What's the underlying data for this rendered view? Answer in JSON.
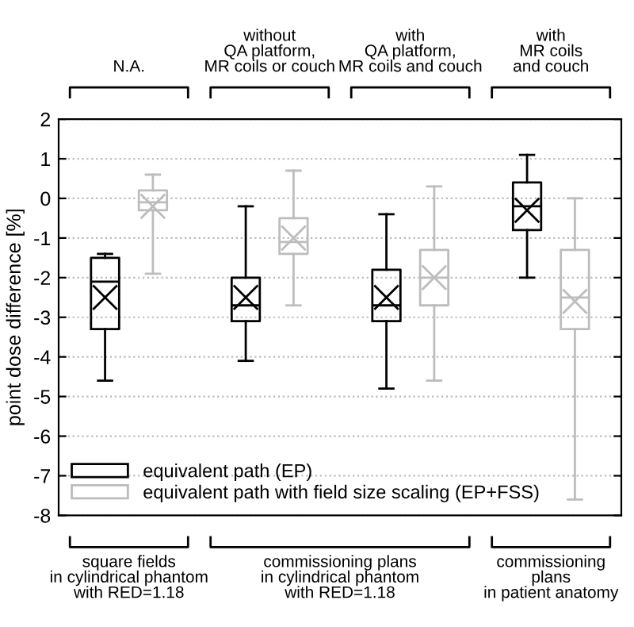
{
  "chart_data": {
    "type": "box",
    "categories": [
      "N.A.",
      "without\nQA platform,\nMR coils or couch",
      "with\nQA platform,\nMR coils and couch",
      "with\nMR coils\nand couch"
    ],
    "ylabel": "point dose difference [%]",
    "ylim": [
      -8,
      2
    ],
    "yticks": [
      -8,
      -7,
      -6,
      -5,
      -4,
      -3,
      -2,
      -1,
      0,
      1,
      2
    ],
    "grid": "y",
    "legend": "bottom left",
    "marker": "cross",
    "series": [
      {
        "name": "equivalent path (EP)",
        "color": "#000000",
        "boxes": [
          {
            "low": -4.6,
            "q1": -3.3,
            "median": -2.1,
            "q3": -1.5,
            "high": -1.4,
            "mean": -2.5
          },
          {
            "low": -4.1,
            "q1": -3.1,
            "median": -2.7,
            "q3": -2.0,
            "high": -0.2,
            "mean": -2.5
          },
          {
            "low": -4.8,
            "q1": -3.1,
            "median": -2.7,
            "q3": -1.8,
            "high": -0.4,
            "mean": -2.5
          },
          {
            "low": -2.0,
            "q1": -0.8,
            "median": -0.2,
            "q3": 0.4,
            "high": 1.1,
            "mean": -0.3
          }
        ]
      },
      {
        "name": "equivalent path with field size scaling (EP+FSS)",
        "color": "#bdbdbd",
        "boxes": [
          {
            "low": -1.9,
            "q1": -0.3,
            "median": -0.1,
            "q3": 0.2,
            "high": 0.6,
            "mean": -0.2
          },
          {
            "low": -2.7,
            "q1": -1.4,
            "median": -1.1,
            "q3": -0.5,
            "high": 0.7,
            "mean": -1.0
          },
          {
            "low": -4.6,
            "q1": -2.7,
            "median": -2.0,
            "q3": -1.3,
            "high": 0.3,
            "mean": -2.0
          },
          {
            "low": -7.6,
            "q1": -3.3,
            "median": -2.5,
            "q3": -1.3,
            "high": 0.0,
            "mean": -2.6
          }
        ]
      }
    ],
    "annotations": [
      "square fields\nin cylindrical phantom\nwith RED=1.18",
      "commissioning plans\nin cylindrical phantom\nwith RED=1.18",
      "commissioning\nplans\nin patient anatomy"
    ]
  }
}
